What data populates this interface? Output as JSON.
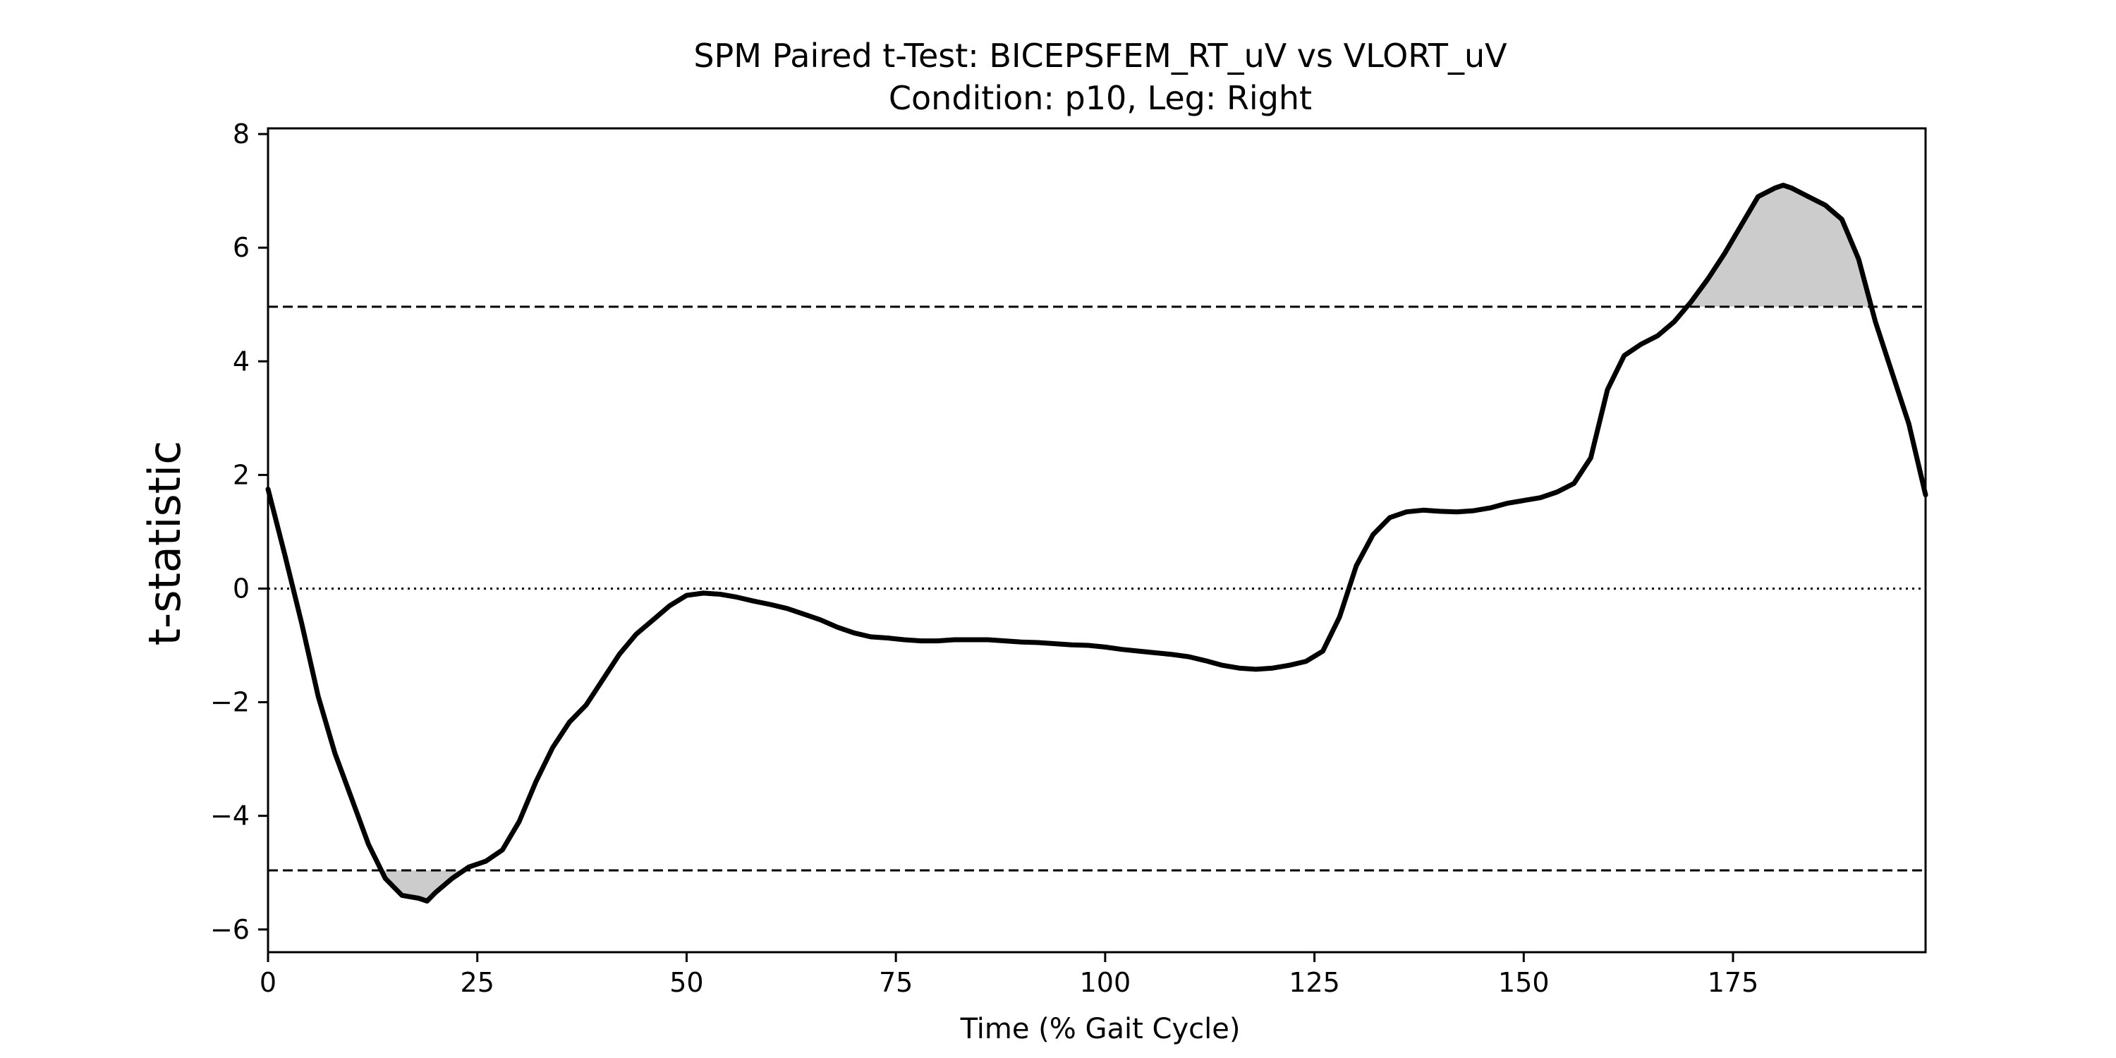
{
  "chart_data": {
    "type": "line",
    "title": "SPM Paired t-Test: BICEPSFEM_RT_uV vs VLORT_uV",
    "subtitle": "Condition: p10, Leg: Right",
    "xlabel": "Time (% Gait Cycle)",
    "ylabel": "t-statistic",
    "xlim": [
      0,
      198
    ],
    "ylim": [
      -6.4,
      8.1
    ],
    "xticks": [
      0,
      25,
      50,
      75,
      100,
      125,
      150,
      175
    ],
    "yticks": [
      -6,
      -4,
      -2,
      0,
      2,
      4,
      6,
      8
    ],
    "xtick_labels": [
      "0",
      "25",
      "50",
      "75",
      "100",
      "125",
      "150",
      "175"
    ],
    "ytick_labels": [
      "−6",
      "−4",
      "−2",
      "0",
      "2",
      "4",
      "6",
      "8"
    ],
    "threshold": 4.96,
    "zero_line": 0,
    "grid": false,
    "colors": {
      "line": "#000000",
      "fill": "#cccccc",
      "threshold": "#000000"
    },
    "series": [
      {
        "x": [
          0,
          2,
          4,
          6,
          8,
          10,
          12,
          14,
          16,
          18,
          19,
          20,
          22,
          24,
          26,
          28,
          30,
          32,
          34,
          36,
          38,
          40,
          42,
          44,
          46,
          48,
          50,
          52,
          54,
          56,
          58,
          60,
          62,
          64,
          66,
          68,
          70,
          72,
          74,
          76,
          78,
          80,
          82,
          84,
          86,
          88,
          90,
          92,
          94,
          96,
          98,
          100,
          102,
          104,
          106,
          108,
          110,
          112,
          114,
          116,
          118,
          120,
          122,
          124,
          126,
          128,
          130,
          132,
          134,
          136,
          138,
          140,
          142,
          144,
          146,
          148,
          150,
          152,
          154,
          156,
          158,
          160,
          162,
          164,
          166,
          168,
          170,
          172,
          174,
          176,
          178,
          180,
          181,
          182,
          184,
          186,
          188,
          190,
          192,
          194,
          196,
          198
        ],
        "y": [
          1.75,
          0.6,
          -0.6,
          -1.9,
          -2.9,
          -3.7,
          -4.5,
          -5.1,
          -5.4,
          -5.45,
          -5.5,
          -5.35,
          -5.1,
          -4.9,
          -4.8,
          -4.6,
          -4.1,
          -3.4,
          -2.8,
          -2.35,
          -2.05,
          -1.6,
          -1.15,
          -0.8,
          -0.55,
          -0.3,
          -0.12,
          -0.08,
          -0.1,
          -0.15,
          -0.22,
          -0.28,
          -0.35,
          -0.45,
          -0.55,
          -0.68,
          -0.78,
          -0.85,
          -0.87,
          -0.9,
          -0.92,
          -0.92,
          -0.9,
          -0.9,
          -0.9,
          -0.92,
          -0.94,
          -0.95,
          -0.97,
          -0.99,
          -1.0,
          -1.03,
          -1.07,
          -1.1,
          -1.13,
          -1.16,
          -1.2,
          -1.27,
          -1.35,
          -1.4,
          -1.42,
          -1.4,
          -1.35,
          -1.28,
          -1.1,
          -0.5,
          0.4,
          0.95,
          1.25,
          1.35,
          1.38,
          1.36,
          1.35,
          1.37,
          1.42,
          1.5,
          1.55,
          1.6,
          1.7,
          1.85,
          2.3,
          3.5,
          4.1,
          4.3,
          4.45,
          4.7,
          5.05,
          5.45,
          5.9,
          6.4,
          6.9,
          7.05,
          7.1,
          7.05,
          6.9,
          6.75,
          6.5,
          5.8,
          4.7,
          3.8,
          2.9,
          1.65
        ]
      }
    ]
  }
}
